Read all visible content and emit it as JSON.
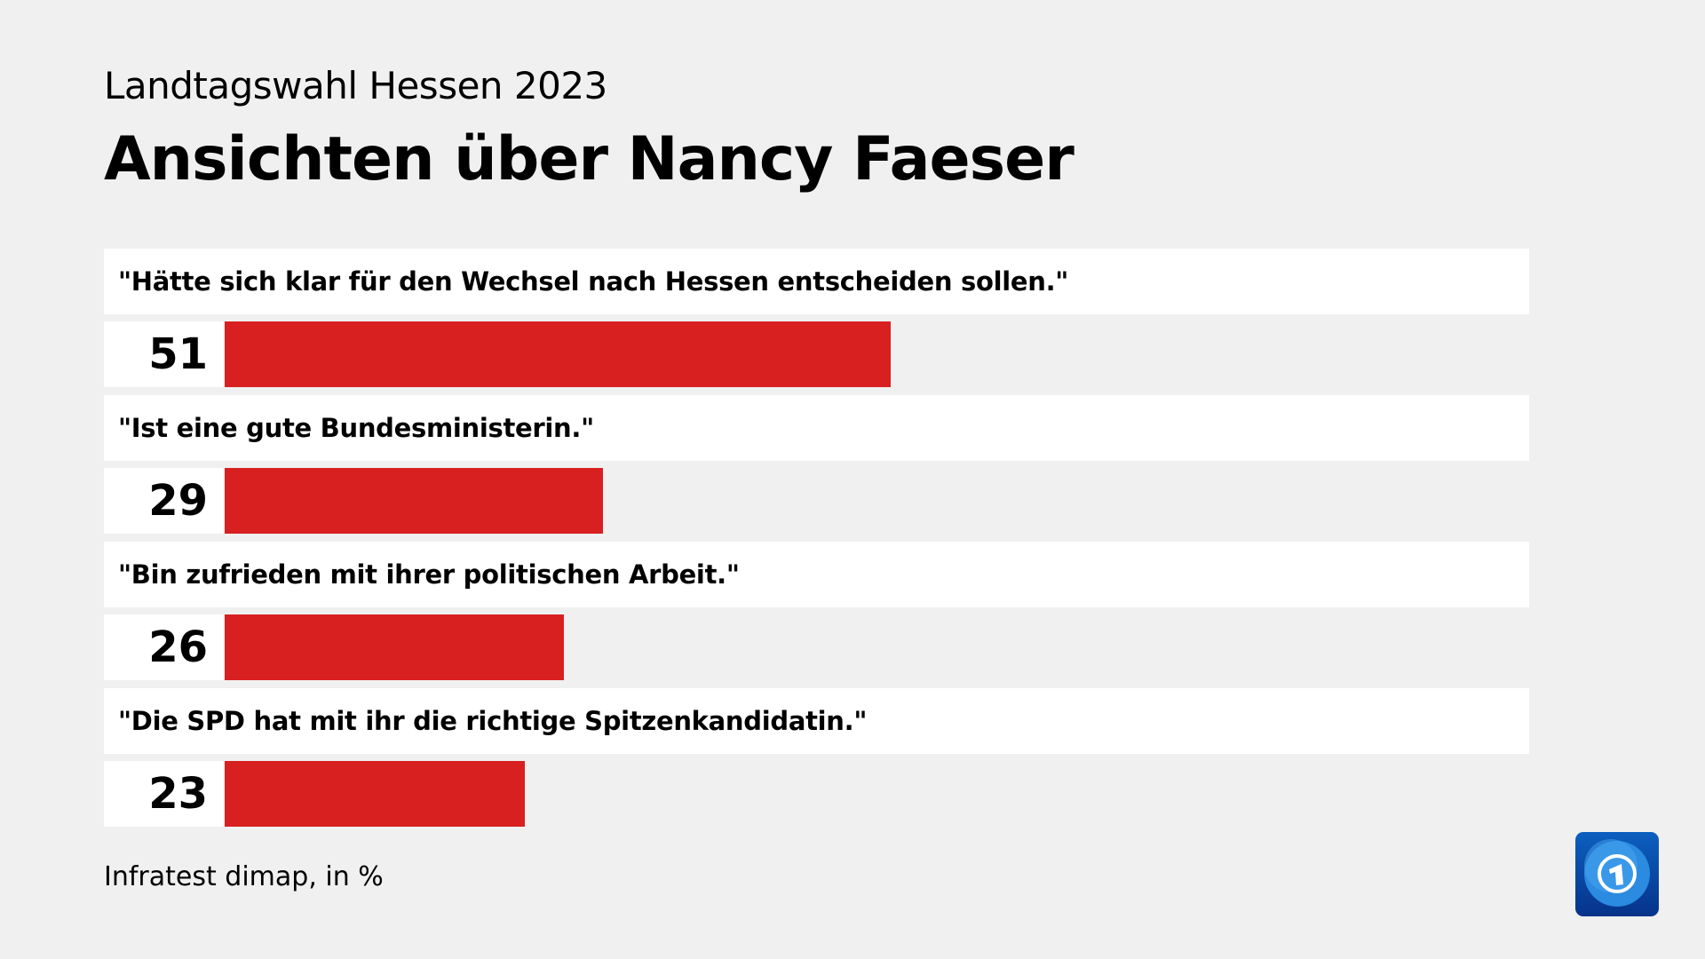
{
  "chart_data": {
    "type": "bar",
    "subtitle": "Landtagswahl Hessen 2023",
    "title": "Ansichten über Nancy Faeser",
    "categories": [
      "\"Hätte sich klar für den Wechsel nach Hessen entscheiden sollen.\"",
      "\"Ist eine gute Bundesministerin.\"",
      "\"Bin zufrieden mit ihrer politischen Arbeit.\"",
      "\"Die SPD hat mit ihr die richtige Spitzenkandidatin.\""
    ],
    "values": [
      51,
      29,
      26,
      23
    ],
    "bar_color": "#d82020",
    "source": "Infratest dimap, in %"
  },
  "logo": "tagesschau / Das Erste logo"
}
